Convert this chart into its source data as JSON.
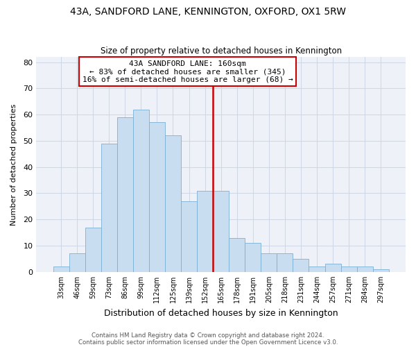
{
  "title": "43A, SANDFORD LANE, KENNINGTON, OXFORD, OX1 5RW",
  "subtitle": "Size of property relative to detached houses in Kennington",
  "xlabel": "Distribution of detached houses by size in Kennington",
  "ylabel": "Number of detached properties",
  "bar_color": "#c8ddf0",
  "bar_edge_color": "#7aafd4",
  "grid_color": "#d0d8e8",
  "bg_color": "#eef2f8",
  "bin_labels": [
    "33sqm",
    "46sqm",
    "59sqm",
    "73sqm",
    "86sqm",
    "99sqm",
    "112sqm",
    "125sqm",
    "139sqm",
    "152sqm",
    "165sqm",
    "178sqm",
    "191sqm",
    "205sqm",
    "218sqm",
    "231sqm",
    "244sqm",
    "257sqm",
    "271sqm",
    "284sqm",
    "297sqm"
  ],
  "bar_heights": [
    2,
    7,
    17,
    49,
    59,
    62,
    57,
    52,
    27,
    31,
    31,
    13,
    11,
    7,
    7,
    5,
    2,
    3,
    2,
    2,
    1
  ],
  "vline_index": 10,
  "vline_color": "#cc0000",
  "ylim": [
    0,
    82
  ],
  "yticks": [
    0,
    10,
    20,
    30,
    40,
    50,
    60,
    70,
    80
  ],
  "annotation_title": "43A SANDFORD LANE: 160sqm",
  "annotation_line1": "← 83% of detached houses are smaller (345)",
  "annotation_line2": "16% of semi-detached houses are larger (68) →",
  "footer1": "Contains HM Land Registry data © Crown copyright and database right 2024.",
  "footer2": "Contains public sector information licensed under the Open Government Licence v3.0."
}
